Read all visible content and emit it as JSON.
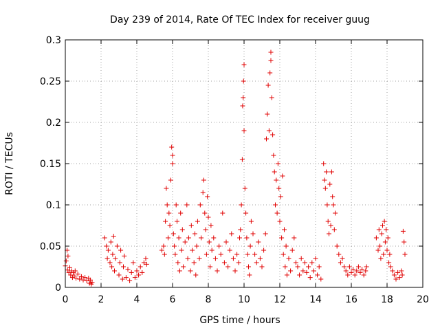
{
  "chart_data": {
    "type": "scatter",
    "title": "Day 239 of 2014, Rate Of TEC Index for receiver guug",
    "xlabel": "GPS time / hours",
    "ylabel": "ROTI / TECUs",
    "xlim": [
      0,
      20
    ],
    "ylim": [
      0,
      0.3
    ],
    "xticks": [
      0,
      2,
      4,
      6,
      8,
      10,
      12,
      14,
      16,
      18,
      20
    ],
    "yticks": [
      0,
      0.05,
      0.1,
      0.15,
      0.2,
      0.25,
      0.3
    ],
    "xtick_labels": [
      "0",
      "2",
      "4",
      "6",
      "8",
      "10",
      "12",
      "14",
      "16",
      "18",
      "20"
    ],
    "ytick_labels": [
      "0",
      "0.05",
      "0.1",
      "0.15",
      "0.2",
      "0.25",
      "0.3"
    ],
    "grid": true,
    "marker": "+",
    "color": "#e00000",
    "series": [
      {
        "points": [
          [
            0.0,
            0.026
          ],
          [
            0.05,
            0.032
          ],
          [
            0.1,
            0.045
          ],
          [
            0.12,
            0.021
          ],
          [
            0.15,
            0.038
          ],
          [
            0.2,
            0.018
          ],
          [
            0.25,
            0.024
          ],
          [
            0.3,
            0.015
          ],
          [
            0.35,
            0.02
          ],
          [
            0.4,
            0.012
          ],
          [
            0.45,
            0.018
          ],
          [
            0.5,
            0.014
          ],
          [
            0.55,
            0.02
          ],
          [
            0.6,
            0.011
          ],
          [
            0.7,
            0.016
          ],
          [
            0.8,
            0.01
          ],
          [
            0.9,
            0.013
          ],
          [
            1.0,
            0.009
          ],
          [
            1.1,
            0.012
          ],
          [
            1.2,
            0.008
          ],
          [
            1.3,
            0.011
          ],
          [
            1.35,
            0.005
          ],
          [
            1.4,
            0.009
          ],
          [
            1.45,
            0.004
          ],
          [
            1.5,
            0.006
          ],
          [
            2.2,
            0.06
          ],
          [
            2.3,
            0.05
          ],
          [
            2.35,
            0.035
          ],
          [
            2.4,
            0.045
          ],
          [
            2.5,
            0.03
          ],
          [
            2.55,
            0.055
          ],
          [
            2.6,
            0.025
          ],
          [
            2.65,
            0.04
          ],
          [
            2.7,
            0.062
          ],
          [
            2.75,
            0.02
          ],
          [
            2.8,
            0.035
          ],
          [
            2.9,
            0.05
          ],
          [
            3.0,
            0.015
          ],
          [
            3.05,
            0.03
          ],
          [
            3.1,
            0.045
          ],
          [
            3.2,
            0.01
          ],
          [
            3.25,
            0.025
          ],
          [
            3.3,
            0.038
          ],
          [
            3.4,
            0.012
          ],
          [
            3.5,
            0.022
          ],
          [
            3.6,
            0.008
          ],
          [
            3.7,
            0.018
          ],
          [
            3.8,
            0.03
          ],
          [
            3.9,
            0.012
          ],
          [
            4.0,
            0.02
          ],
          [
            4.1,
            0.015
          ],
          [
            4.2,
            0.025
          ],
          [
            4.3,
            0.018
          ],
          [
            4.4,
            0.03
          ],
          [
            4.5,
            0.035
          ],
          [
            4.55,
            0.028
          ],
          [
            5.4,
            0.045
          ],
          [
            5.5,
            0.05
          ],
          [
            5.55,
            0.04
          ],
          [
            5.6,
            0.08
          ],
          [
            5.65,
            0.12
          ],
          [
            5.7,
            0.1
          ],
          [
            5.75,
            0.06
          ],
          [
            5.8,
            0.09
          ],
          [
            5.85,
            0.075
          ],
          [
            5.9,
            0.13
          ],
          [
            5.95,
            0.17
          ],
          [
            6.0,
            0.16
          ],
          [
            6.0,
            0.15
          ],
          [
            6.05,
            0.065
          ],
          [
            6.1,
            0.05
          ],
          [
            6.15,
            0.04
          ],
          [
            6.2,
            0.1
          ],
          [
            6.25,
            0.08
          ],
          [
            6.3,
            0.03
          ],
          [
            6.35,
            0.06
          ],
          [
            6.4,
            0.02
          ],
          [
            6.45,
            0.09
          ],
          [
            6.5,
            0.045
          ],
          [
            6.55,
            0.07
          ],
          [
            6.6,
            0.025
          ],
          [
            6.7,
            0.055
          ],
          [
            6.8,
            0.1
          ],
          [
            6.85,
            0.035
          ],
          [
            6.9,
            0.06
          ],
          [
            7.0,
            0.02
          ],
          [
            7.05,
            0.075
          ],
          [
            7.1,
            0.045
          ],
          [
            7.2,
            0.03
          ],
          [
            7.25,
            0.065
          ],
          [
            7.3,
            0.015
          ],
          [
            7.35,
            0.05
          ],
          [
            7.4,
            0.08
          ],
          [
            7.5,
            0.035
          ],
          [
            7.55,
            0.1
          ],
          [
            7.6,
            0.06
          ],
          [
            7.7,
            0.115
          ],
          [
            7.75,
            0.13
          ],
          [
            7.8,
            0.09
          ],
          [
            7.85,
            0.07
          ],
          [
            7.9,
            0.04
          ],
          [
            7.95,
            0.11
          ],
          [
            8.0,
            0.085
          ],
          [
            8.05,
            0.055
          ],
          [
            8.1,
            0.025
          ],
          [
            8.15,
            0.075
          ],
          [
            8.2,
            0.045
          ],
          [
            8.3,
            0.06
          ],
          [
            8.4,
            0.035
          ],
          [
            8.5,
            0.02
          ],
          [
            8.6,
            0.05
          ],
          [
            8.7,
            0.04
          ],
          [
            8.8,
            0.09
          ],
          [
            8.9,
            0.03
          ],
          [
            9.0,
            0.055
          ],
          [
            9.1,
            0.025
          ],
          [
            9.2,
            0.045
          ],
          [
            9.3,
            0.065
          ],
          [
            9.4,
            0.035
          ],
          [
            9.5,
            0.02
          ],
          [
            9.6,
            0.04
          ],
          [
            9.7,
            0.03
          ],
          [
            9.75,
            0.06
          ],
          [
            9.8,
            0.07
          ],
          [
            9.85,
            0.1
          ],
          [
            9.9,
            0.155
          ],
          [
            9.92,
            0.22
          ],
          [
            9.95,
            0.23
          ],
          [
            9.97,
            0.25
          ],
          [
            10.0,
            0.27
          ],
          [
            10.0,
            0.19
          ],
          [
            10.05,
            0.12
          ],
          [
            10.1,
            0.09
          ],
          [
            10.15,
            0.06
          ],
          [
            10.2,
            0.04
          ],
          [
            10.25,
            0.025
          ],
          [
            10.3,
            0.015
          ],
          [
            10.35,
            0.05
          ],
          [
            10.4,
            0.08
          ],
          [
            10.5,
            0.065
          ],
          [
            10.6,
            0.04
          ],
          [
            10.7,
            0.03
          ],
          [
            10.8,
            0.055
          ],
          [
            10.9,
            0.035
          ],
          [
            11.0,
            0.025
          ],
          [
            11.1,
            0.045
          ],
          [
            11.2,
            0.065
          ],
          [
            11.25,
            0.18
          ],
          [
            11.3,
            0.21
          ],
          [
            11.35,
            0.245
          ],
          [
            11.4,
            0.19
          ],
          [
            11.45,
            0.26
          ],
          [
            11.5,
            0.285
          ],
          [
            11.5,
            0.275
          ],
          [
            11.55,
            0.23
          ],
          [
            11.6,
            0.185
          ],
          [
            11.65,
            0.16
          ],
          [
            11.7,
            0.14
          ],
          [
            11.75,
            0.1
          ],
          [
            11.8,
            0.13
          ],
          [
            11.85,
            0.09
          ],
          [
            11.9,
            0.15
          ],
          [
            11.95,
            0.12
          ],
          [
            12.0,
            0.08
          ],
          [
            12.05,
            0.11
          ],
          [
            12.1,
            0.06
          ],
          [
            12.15,
            0.135
          ],
          [
            12.2,
            0.04
          ],
          [
            12.25,
            0.07
          ],
          [
            12.3,
            0.025
          ],
          [
            12.35,
            0.05
          ],
          [
            12.4,
            0.015
          ],
          [
            12.5,
            0.035
          ],
          [
            12.6,
            0.02
          ],
          [
            12.7,
            0.045
          ],
          [
            12.8,
            0.06
          ],
          [
            12.9,
            0.03
          ],
          [
            13.0,
            0.025
          ],
          [
            13.1,
            0.015
          ],
          [
            13.2,
            0.035
          ],
          [
            13.3,
            0.02
          ],
          [
            13.4,
            0.03
          ],
          [
            13.5,
            0.018
          ],
          [
            13.6,
            0.025
          ],
          [
            13.7,
            0.012
          ],
          [
            13.8,
            0.03
          ],
          [
            13.9,
            0.02
          ],
          [
            14.0,
            0.035
          ],
          [
            14.1,
            0.015
          ],
          [
            14.2,
            0.025
          ],
          [
            14.3,
            0.01
          ],
          [
            14.45,
            0.15
          ],
          [
            14.5,
            0.13
          ],
          [
            14.55,
            0.12
          ],
          [
            14.6,
            0.14
          ],
          [
            14.65,
            0.1
          ],
          [
            14.7,
            0.08
          ],
          [
            14.75,
            0.065
          ],
          [
            14.8,
            0.125
          ],
          [
            14.85,
            0.075
          ],
          [
            14.9,
            0.14
          ],
          [
            14.95,
            0.11
          ],
          [
            15.0,
            0.1
          ],
          [
            15.05,
            0.07
          ],
          [
            15.1,
            0.09
          ],
          [
            15.2,
            0.05
          ],
          [
            15.3,
            0.04
          ],
          [
            15.4,
            0.03
          ],
          [
            15.5,
            0.035
          ],
          [
            15.6,
            0.025
          ],
          [
            15.7,
            0.02
          ],
          [
            15.8,
            0.015
          ],
          [
            15.9,
            0.025
          ],
          [
            16.0,
            0.018
          ],
          [
            16.1,
            0.022
          ],
          [
            16.2,
            0.015
          ],
          [
            16.3,
            0.02
          ],
          [
            16.4,
            0.025
          ],
          [
            16.5,
            0.018
          ],
          [
            16.6,
            0.022
          ],
          [
            16.7,
            0.015
          ],
          [
            16.8,
            0.02
          ],
          [
            16.85,
            0.025
          ],
          [
            17.4,
            0.06
          ],
          [
            17.5,
            0.045
          ],
          [
            17.55,
            0.07
          ],
          [
            17.6,
            0.05
          ],
          [
            17.65,
            0.035
          ],
          [
            17.7,
            0.065
          ],
          [
            17.75,
            0.075
          ],
          [
            17.8,
            0.04
          ],
          [
            17.85,
            0.08
          ],
          [
            17.9,
            0.055
          ],
          [
            17.95,
            0.07
          ],
          [
            18.0,
            0.045
          ],
          [
            18.05,
            0.06
          ],
          [
            18.1,
            0.03
          ],
          [
            18.15,
            0.04
          ],
          [
            18.2,
            0.025
          ],
          [
            18.3,
            0.02
          ],
          [
            18.4,
            0.015
          ],
          [
            18.5,
            0.01
          ],
          [
            18.6,
            0.018
          ],
          [
            18.7,
            0.012
          ],
          [
            18.8,
            0.02
          ],
          [
            18.85,
            0.015
          ],
          [
            18.9,
            0.068
          ],
          [
            18.95,
            0.055
          ],
          [
            19.0,
            0.04
          ]
        ]
      }
    ]
  }
}
